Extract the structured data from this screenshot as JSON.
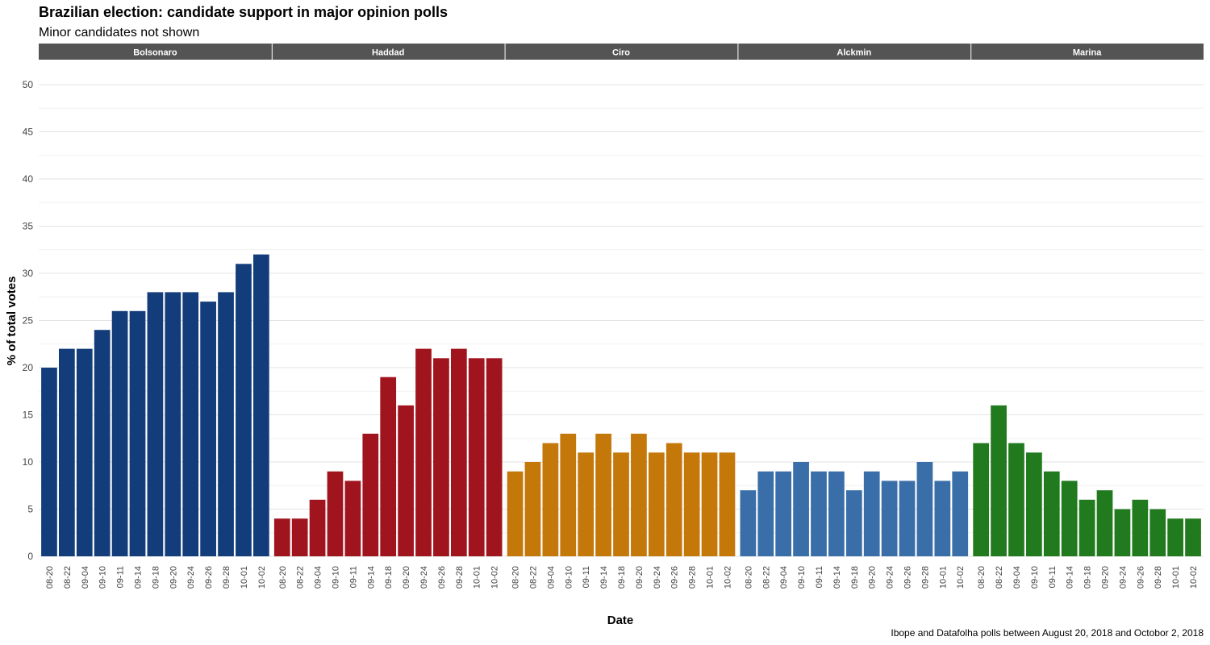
{
  "chart_data": {
    "type": "bar",
    "title": "Brazilian election: candidate support in major opinion polls",
    "subtitle": "Minor candidates not shown",
    "xlabel": "Date",
    "ylabel": "% of total votes",
    "caption": "Ibope and Datafolha polls between August 20, 2018 and Octobor 2, 2018",
    "ylim": [
      0,
      52
    ],
    "yticks": [
      0,
      5,
      10,
      15,
      20,
      25,
      30,
      35,
      40,
      45,
      50
    ],
    "categories": [
      "08-20",
      "08-22",
      "09-04",
      "09-10",
      "09-11",
      "09-14",
      "09-18",
      "09-20",
      "09-24",
      "09-26",
      "09-28",
      "10-01",
      "10-02"
    ],
    "panels": [
      {
        "name": "Bolsonaro",
        "color": "#133d7a",
        "values": [
          20,
          22,
          22,
          24,
          26,
          26,
          28,
          28,
          28,
          27,
          28,
          31,
          32
        ]
      },
      {
        "name": "Haddad",
        "color": "#a0141e",
        "values": [
          4,
          4,
          6,
          9,
          8,
          13,
          19,
          16,
          22,
          21,
          22,
          21,
          21
        ]
      },
      {
        "name": "Ciro",
        "color": "#c4780a",
        "values": [
          9,
          10,
          12,
          13,
          11,
          13,
          11,
          13,
          11,
          12,
          11,
          11,
          11
        ]
      },
      {
        "name": "Alckmin",
        "color": "#3a6ea8",
        "values": [
          7,
          9,
          9,
          10,
          9,
          9,
          7,
          9,
          8,
          8,
          10,
          8,
          9
        ]
      },
      {
        "name": "Marina",
        "color": "#217a1e",
        "values": [
          12,
          16,
          12,
          11,
          9,
          8,
          6,
          7,
          5,
          6,
          5,
          4,
          4
        ]
      }
    ]
  }
}
